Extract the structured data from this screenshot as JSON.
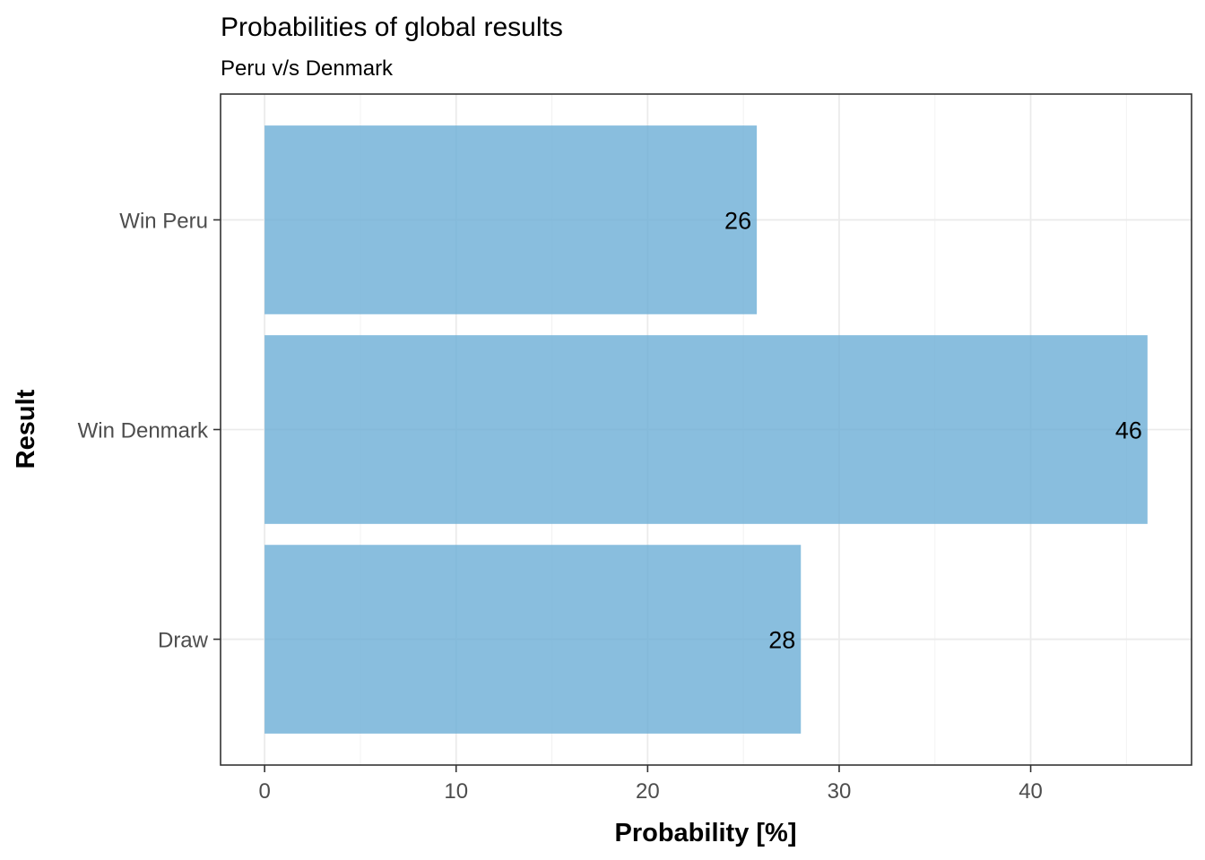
{
  "chart_data": {
    "type": "bar",
    "orientation": "horizontal",
    "title": "Probabilities of global results",
    "subtitle": "Peru v/s Denmark",
    "xlabel": "Probability [%]",
    "ylabel": "Result",
    "categories": [
      "Win Peru",
      "Win Denmark",
      "Draw"
    ],
    "values": [
      25.7,
      46.1,
      28.0
    ],
    "data_labels": [
      "26",
      "46",
      "28"
    ],
    "xticks": [
      0,
      10,
      20,
      30,
      40
    ],
    "xtick_labels": [
      "0",
      "10",
      "20",
      "30",
      "40"
    ],
    "xlim": [
      -2.3,
      48.4
    ],
    "grid": true,
    "legend": "none",
    "colors": {
      "bar": "#6baed6",
      "bar_opacity": 0.8
    }
  }
}
